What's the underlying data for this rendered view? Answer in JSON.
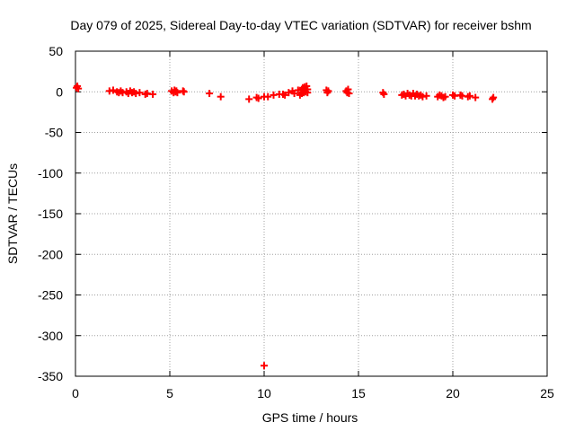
{
  "chart_data": {
    "type": "scatter",
    "title": "Day 079 of 2025, Sidereal Day-to-day VTEC variation (SDTVAR) for receiver bshm",
    "xlabel": "GPS time / hours",
    "ylabel": "SDTVAR / TECUs",
    "xlim": [
      0,
      25
    ],
    "ylim": [
      -350,
      50
    ],
    "xticks": [
      0,
      5,
      10,
      15,
      20,
      25
    ],
    "yticks": [
      50,
      0,
      -50,
      -100,
      -150,
      -200,
      -250,
      -300,
      -350
    ],
    "xtick_labels": [
      "0",
      "5",
      "10",
      "15",
      "20",
      "25"
    ],
    "ytick_labels": [
      "50",
      "0",
      "-50",
      "-100",
      "-150",
      "-200",
      "-250",
      "-300",
      "-350"
    ],
    "grid": true,
    "marker": "plus",
    "color": "#ff0000",
    "series": [
      {
        "name": "SDTVAR",
        "x": [
          0.05,
          0.1,
          0.15,
          1.8,
          2.0,
          2.2,
          2.3,
          2.4,
          2.5,
          2.7,
          2.8,
          2.9,
          3.0,
          3.1,
          3.2,
          3.4,
          3.7,
          3.8,
          4.1,
          5.1,
          5.2,
          5.25,
          5.3,
          5.35,
          5.4,
          5.7,
          5.75,
          7.1,
          7.7,
          9.2,
          9.6,
          9.7,
          10.0,
          10.2,
          10.5,
          10.8,
          11.0,
          11.1,
          11.3,
          11.5,
          11.6,
          11.8,
          11.9,
          12.0,
          12.0,
          12.05,
          12.1,
          12.1,
          12.15,
          12.2,
          12.25,
          12.3,
          12.3,
          13.3,
          13.35,
          13.4,
          14.35,
          14.4,
          14.45,
          14.5,
          16.3,
          16.35,
          17.3,
          17.4,
          17.5,
          17.6,
          17.7,
          17.8,
          17.9,
          18.0,
          18.1,
          18.2,
          18.3,
          18.4,
          18.6,
          19.2,
          19.3,
          19.4,
          19.5,
          19.6,
          20.0,
          20.1,
          20.4,
          20.5,
          20.8,
          20.9,
          21.2,
          22.1,
          22.15,
          10.0
        ],
        "y": [
          5,
          7,
          4,
          1,
          2,
          0,
          -1,
          1,
          -1,
          0,
          -2,
          1,
          -1,
          0,
          -2,
          -1,
          -3,
          -2,
          -3,
          1,
          -1,
          2,
          0,
          1,
          -1,
          1,
          0,
          -2,
          -6,
          -9,
          -7,
          -8,
          -6,
          -6,
          -4,
          -3,
          -3,
          -4,
          -1,
          1,
          -2,
          2,
          -4,
          3,
          -2,
          5,
          1,
          -1,
          6,
          0,
          7,
          3,
          -1,
          2,
          -1,
          1,
          1,
          -1,
          3,
          -2,
          -1,
          -3,
          -4,
          -3,
          -5,
          -2,
          -4,
          -5,
          -2,
          -5,
          -3,
          -5,
          -4,
          -6,
          -5,
          -6,
          -4,
          -5,
          -7,
          -6,
          -4,
          -5,
          -4,
          -5,
          -6,
          -5,
          -7,
          -9,
          -7,
          -337
        ]
      }
    ]
  }
}
